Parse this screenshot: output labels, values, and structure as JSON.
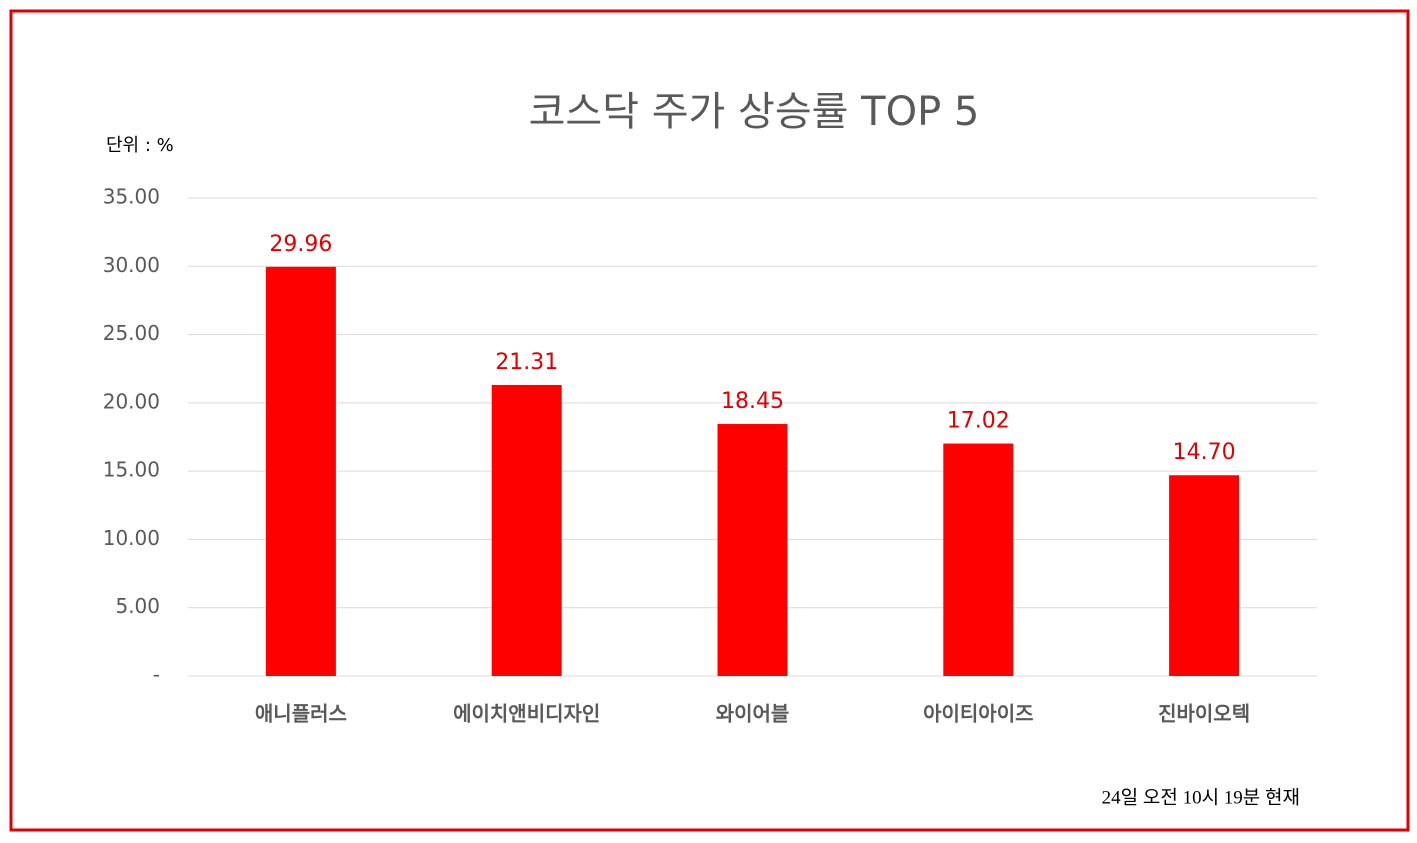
{
  "chart_data": {
    "type": "bar",
    "title": "코스닥 주가 상승률 TOP 5",
    "unit_label": "단위 : %",
    "footnote": "24일  오전 10시 19분 현재",
    "categories": [
      "애니플러스",
      "에이치앤비디자인",
      "와이어블",
      "아이티아이즈",
      "진바이오텍"
    ],
    "values": [
      29.96,
      21.31,
      18.45,
      17.02,
      14.7
    ],
    "value_labels": [
      "29.96",
      "21.31",
      "18.45",
      "17.02",
      "14.70"
    ],
    "color": "#ff0000",
    "label_color": "#e00000",
    "ylim": [
      0,
      35
    ],
    "yticks": [
      {
        "value": 0,
        "label": "-"
      },
      {
        "value": 5,
        "label": "5.00"
      },
      {
        "value": 10,
        "label": "10.00"
      },
      {
        "value": 15,
        "label": "15.00"
      },
      {
        "value": 20,
        "label": "20.00"
      },
      {
        "value": 25,
        "label": "25.00"
      },
      {
        "value": 30,
        "label": "30.00"
      },
      {
        "value": 35,
        "label": "35.00"
      }
    ],
    "grid": true
  }
}
